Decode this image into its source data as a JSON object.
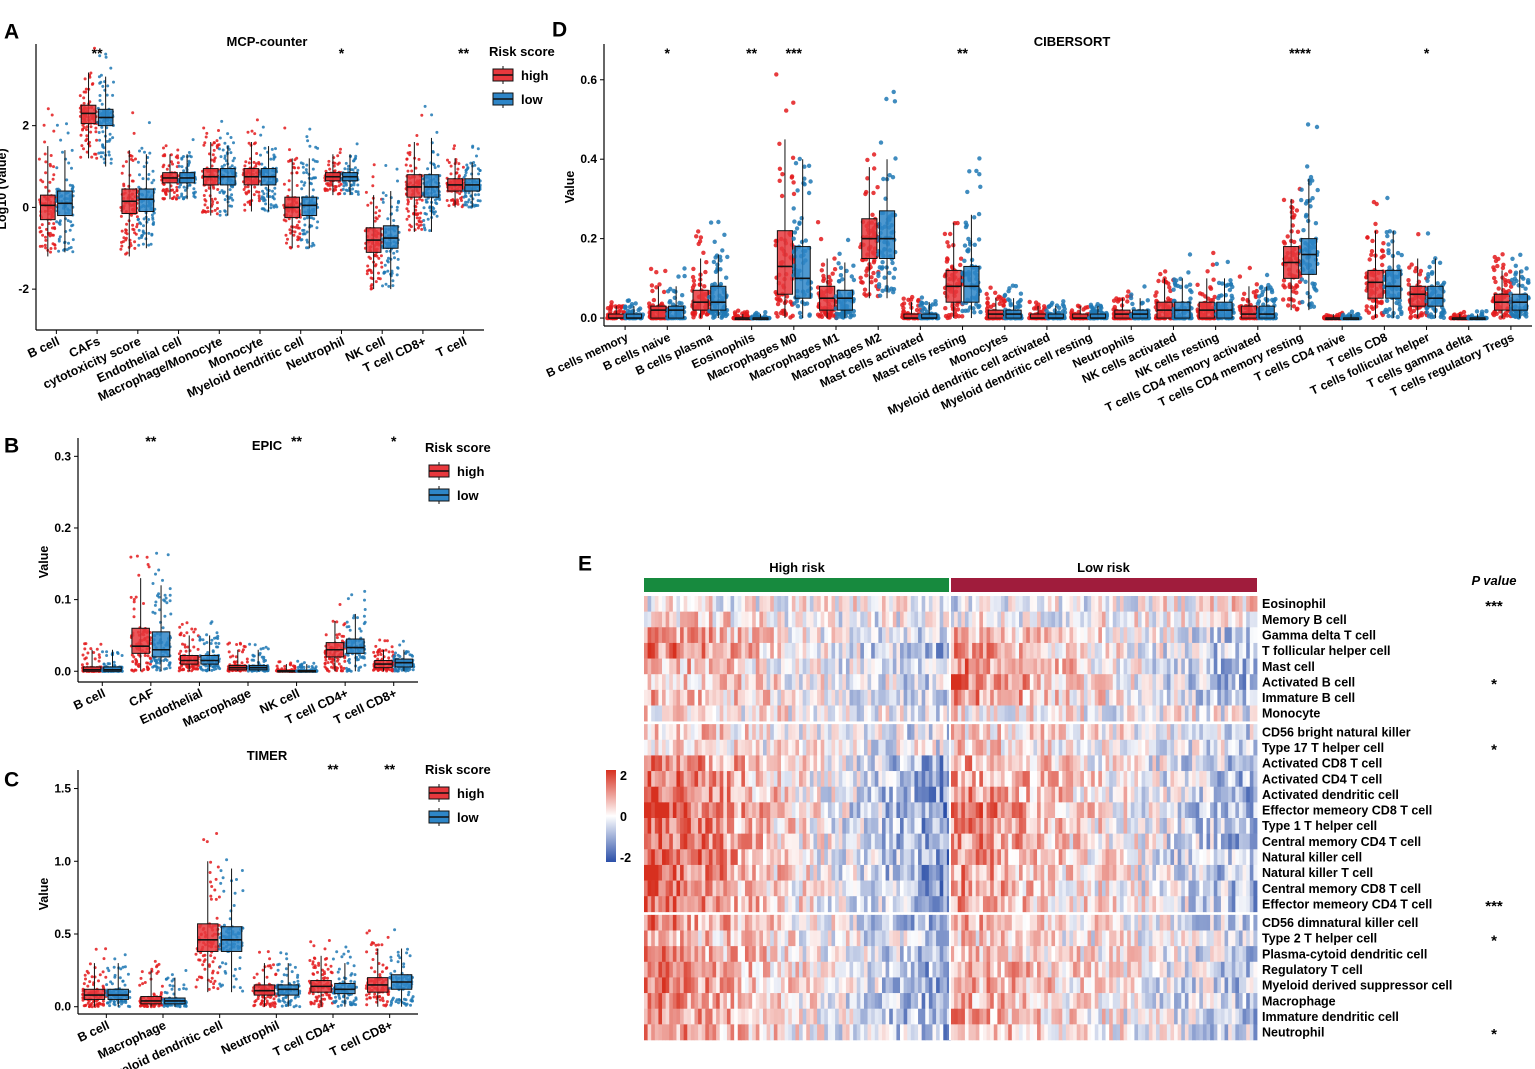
{
  "colors": {
    "high": "#e31a1c",
    "low": "#1f78b4",
    "high_fill": "#e8383d",
    "low_fill": "#2e86c8",
    "high_bar": "#178a3e",
    "low_bar": "#a01c3c",
    "heat_pos": "#d7301f",
    "heat_mid": "#ffffff",
    "heat_neg": "#2b4fa8"
  },
  "legend": {
    "title": "Risk score",
    "high": "high",
    "low": "low"
  },
  "chart_data": [
    {
      "id": "A",
      "panel_label": "A",
      "type": "box",
      "title": "MCP-counter",
      "ylabel": "Log10 (Value)",
      "ylim": [
        -3,
        3.9
      ],
      "yticks": [
        -2,
        0,
        2
      ],
      "categories": [
        "B cell",
        "CAFs",
        "cytotoxicity score",
        "Endothelial cell",
        "Macrophage/Monocyte",
        "Monocyte",
        "Myeloid dendritic cell",
        "Neutrophil",
        "NK cell",
        "T cell CD8+",
        "T cell"
      ],
      "significance": [
        "",
        "**",
        "",
        "",
        "",
        "",
        "",
        "*",
        "",
        "",
        "**"
      ],
      "series": [
        {
          "name": "high",
          "q1": [
            -0.3,
            2.05,
            -0.15,
            0.6,
            0.55,
            0.55,
            -0.25,
            0.65,
            -1.1,
            0.25,
            0.4
          ],
          "median": [
            0.05,
            2.3,
            0.15,
            0.72,
            0.75,
            0.75,
            0.0,
            0.75,
            -0.8,
            0.5,
            0.55
          ],
          "q3": [
            0.3,
            2.5,
            0.45,
            0.85,
            0.95,
            0.95,
            0.25,
            0.85,
            -0.5,
            0.8,
            0.7
          ],
          "wlo": [
            -1.2,
            1.2,
            -1.2,
            0.2,
            -0.2,
            -0.1,
            -1.0,
            0.3,
            -2.0,
            -0.6,
            0.0
          ],
          "whi": [
            1.5,
            3.3,
            1.4,
            1.3,
            1.6,
            1.6,
            1.2,
            1.3,
            0.3,
            1.6,
            1.2
          ]
        },
        {
          "name": "low",
          "q1": [
            -0.2,
            2.0,
            -0.1,
            0.6,
            0.55,
            0.55,
            -0.2,
            0.65,
            -1.0,
            0.25,
            0.4
          ],
          "median": [
            0.1,
            2.2,
            0.2,
            0.72,
            0.75,
            0.75,
            0.05,
            0.75,
            -0.75,
            0.5,
            0.55
          ],
          "q3": [
            0.4,
            2.4,
            0.45,
            0.85,
            0.95,
            0.95,
            0.25,
            0.85,
            -0.45,
            0.8,
            0.7
          ],
          "wlo": [
            -1.1,
            1.0,
            -1.0,
            0.2,
            -0.2,
            -0.1,
            -1.0,
            0.3,
            -2.0,
            -0.6,
            0.0
          ],
          "whi": [
            1.4,
            3.2,
            1.3,
            1.3,
            1.5,
            1.5,
            1.2,
            1.3,
            0.4,
            1.7,
            1.1
          ]
        }
      ]
    },
    {
      "id": "B",
      "panel_label": "B",
      "type": "box",
      "title": "EPIC",
      "ylabel": "Value",
      "ylim": [
        -0.015,
        0.32
      ],
      "yticks": [
        0.0,
        0.1,
        0.2,
        0.3
      ],
      "categories": [
        "B cell",
        "CAF",
        "Endothelial",
        "Macrophage",
        "NK cell",
        "T cell CD4+",
        "T cell CD8+"
      ],
      "significance": [
        "",
        "**",
        "",
        "",
        "**",
        "",
        "*"
      ],
      "series": [
        {
          "name": "high",
          "q1": [
            0.0,
            0.025,
            0.01,
            0.002,
            0.0,
            0.02,
            0.005
          ],
          "median": [
            0.002,
            0.035,
            0.015,
            0.005,
            0.0,
            0.03,
            0.01
          ],
          "q3": [
            0.006,
            0.06,
            0.022,
            0.008,
            0.001,
            0.04,
            0.015
          ],
          "wlo": [
            0.0,
            0.0,
            0.0,
            0.0,
            0.0,
            0.0,
            0.0
          ],
          "whi": [
            0.03,
            0.13,
            0.05,
            0.03,
            0.01,
            0.07,
            0.03
          ]
        },
        {
          "name": "low",
          "q1": [
            0.0,
            0.02,
            0.01,
            0.002,
            0.0,
            0.025,
            0.006
          ],
          "median": [
            0.002,
            0.03,
            0.015,
            0.005,
            0.0,
            0.033,
            0.012
          ],
          "q3": [
            0.006,
            0.055,
            0.022,
            0.008,
            0.001,
            0.045,
            0.017
          ],
          "wlo": [
            0.0,
            0.0,
            0.0,
            0.0,
            0.0,
            0.0,
            0.0
          ],
          "whi": [
            0.03,
            0.12,
            0.05,
            0.03,
            0.01,
            0.08,
            0.03
          ]
        }
      ]
    },
    {
      "id": "C",
      "panel_label": "C",
      "type": "box",
      "title": "TIMER",
      "ylabel": "Value",
      "ylim": [
        -0.05,
        1.6
      ],
      "yticks": [
        0.0,
        0.5,
        1.0,
        1.5
      ],
      "categories": [
        "B cell",
        "Macrophage",
        "Myeloid dendritic cell",
        "Neutrophil",
        "T cell CD4+",
        "T cell CD8+"
      ],
      "significance": [
        "",
        "",
        "",
        "",
        "**",
        "**"
      ],
      "series": [
        {
          "name": "high",
          "q1": [
            0.05,
            0.02,
            0.38,
            0.08,
            0.1,
            0.1
          ],
          "median": [
            0.08,
            0.04,
            0.46,
            0.11,
            0.14,
            0.15
          ],
          "q3": [
            0.12,
            0.07,
            0.57,
            0.15,
            0.18,
            0.2
          ],
          "wlo": [
            0.0,
            0.0,
            0.1,
            0.0,
            0.0,
            0.0
          ],
          "whi": [
            0.3,
            0.25,
            1.0,
            0.3,
            0.35,
            0.4
          ]
        },
        {
          "name": "low",
          "q1": [
            0.05,
            0.02,
            0.38,
            0.08,
            0.09,
            0.12
          ],
          "median": [
            0.08,
            0.04,
            0.46,
            0.12,
            0.12,
            0.17
          ],
          "q3": [
            0.12,
            0.06,
            0.55,
            0.15,
            0.16,
            0.22
          ],
          "wlo": [
            0.0,
            0.0,
            0.1,
            0.0,
            0.0,
            0.0
          ],
          "whi": [
            0.3,
            0.2,
            0.95,
            0.3,
            0.3,
            0.4
          ]
        }
      ]
    },
    {
      "id": "D",
      "panel_label": "D",
      "type": "box",
      "title": "CIBERSORT",
      "ylabel": "Value",
      "ylim": [
        -0.02,
        0.68
      ],
      "yticks": [
        0.0,
        0.2,
        0.4,
        0.6
      ],
      "categories": [
        "B cells memory",
        "B cells naive",
        "B cells plasma",
        "Eosinophils",
        "Macrophages M0",
        "Macrophages M1",
        "Macrophages M2",
        "Mast cells activated",
        "Mast cells resting",
        "Monocytes",
        "Myeloid dendritic cell activated",
        "Myeloid dendritic cell resting",
        "Neutrophils",
        "NK cells activated",
        "NK cells resting",
        "T cells CD4 memory activated",
        "T cells CD4 memory resting",
        "T cells CD4 naive",
        "T cells CD8",
        "T cells follicular helper",
        "T cells gamma delta",
        "T cells regulatory Tregs"
      ],
      "significance": [
        "",
        "*",
        "",
        "**",
        "***",
        "",
        "",
        "",
        "**",
        "",
        "",
        "",
        "",
        "",
        "",
        "",
        "****",
        "",
        "",
        "*",
        "",
        ""
      ],
      "series": [
        {
          "name": "high",
          "q1": [
            0.0,
            0.0,
            0.02,
            0.0,
            0.06,
            0.02,
            0.15,
            0.0,
            0.04,
            0.0,
            0.0,
            0.0,
            0.0,
            0.0,
            0.0,
            0.0,
            0.1,
            0.0,
            0.05,
            0.03,
            0.0,
            0.02
          ],
          "median": [
            0.0,
            0.02,
            0.04,
            0.0,
            0.13,
            0.05,
            0.2,
            0.0,
            0.08,
            0.01,
            0.0,
            0.0,
            0.01,
            0.02,
            0.02,
            0.01,
            0.14,
            0.0,
            0.09,
            0.06,
            0.0,
            0.04
          ],
          "q3": [
            0.01,
            0.03,
            0.07,
            0.0,
            0.22,
            0.08,
            0.25,
            0.01,
            0.12,
            0.02,
            0.01,
            0.01,
            0.02,
            0.04,
            0.04,
            0.03,
            0.18,
            0.0,
            0.12,
            0.08,
            0.0,
            0.06
          ],
          "wlo": [
            0.0,
            0.0,
            0.0,
            0.0,
            0.0,
            0.0,
            0.05,
            0.0,
            0.0,
            0.0,
            0.0,
            0.0,
            0.0,
            0.0,
            0.0,
            0.0,
            0.02,
            0.0,
            0.0,
            0.0,
            0.0,
            0.0
          ],
          "whi": [
            0.03,
            0.08,
            0.15,
            0.01,
            0.45,
            0.15,
            0.38,
            0.04,
            0.24,
            0.05,
            0.03,
            0.03,
            0.05,
            0.1,
            0.1,
            0.08,
            0.3,
            0.01,
            0.22,
            0.15,
            0.01,
            0.12
          ]
        },
        {
          "name": "low",
          "q1": [
            0.0,
            0.0,
            0.02,
            0.0,
            0.05,
            0.02,
            0.15,
            0.0,
            0.04,
            0.0,
            0.0,
            0.0,
            0.0,
            0.0,
            0.0,
            0.0,
            0.11,
            0.0,
            0.05,
            0.03,
            0.0,
            0.02
          ],
          "median": [
            0.0,
            0.02,
            0.04,
            0.0,
            0.1,
            0.05,
            0.2,
            0.0,
            0.08,
            0.01,
            0.0,
            0.0,
            0.01,
            0.02,
            0.02,
            0.01,
            0.16,
            0.0,
            0.08,
            0.05,
            0.0,
            0.04
          ],
          "q3": [
            0.01,
            0.03,
            0.08,
            0.0,
            0.18,
            0.07,
            0.27,
            0.01,
            0.13,
            0.02,
            0.01,
            0.01,
            0.02,
            0.04,
            0.04,
            0.03,
            0.2,
            0.0,
            0.12,
            0.08,
            0.0,
            0.06
          ],
          "wlo": [
            0.0,
            0.0,
            0.0,
            0.0,
            0.0,
            0.0,
            0.05,
            0.0,
            0.0,
            0.0,
            0.0,
            0.0,
            0.0,
            0.0,
            0.0,
            0.0,
            0.02,
            0.0,
            0.0,
            0.0,
            0.0,
            0.0
          ],
          "whi": [
            0.03,
            0.08,
            0.16,
            0.01,
            0.4,
            0.14,
            0.4,
            0.04,
            0.26,
            0.05,
            0.03,
            0.03,
            0.05,
            0.1,
            0.1,
            0.08,
            0.35,
            0.01,
            0.22,
            0.15,
            0.01,
            0.12
          ]
        }
      ]
    },
    {
      "id": "E",
      "panel_label": "E",
      "type": "heatmap",
      "groups": [
        "High risk",
        "Low risk"
      ],
      "pvalue_header": "P value",
      "scale_ticks": [
        2,
        0,
        -2
      ],
      "row_blocks": [
        8,
        12,
        8
      ],
      "rows": [
        "Eosinophil",
        "Memory B cell",
        "Gamma delta T cell",
        "T follicular helper cell",
        "Mast cell",
        "Activated B cell",
        "Immature B cell",
        "Monocyte",
        "CD56 bright natural killer",
        "Type 17 T helper cell",
        "Activated CD8 T cell",
        "Activated CD4 T cell",
        "Activated dendritic cell",
        "Effector memeory CD8 T cell",
        "Type 1 T helper cell",
        "Central memory CD4 T cell",
        "Natural killer cell",
        "Natural killer T cell",
        "Central memory CD8 T cell",
        "Effector memeory CD4 T cell",
        "CD56 dimnatural killer cell",
        "Type 2 T helper cell",
        "Plasma-cytoid dendritic cell",
        "Regulatory T cell",
        "Myeloid derived suppressor cell",
        "Macrophage",
        "Immature dendritic cell",
        "Neutrophil"
      ],
      "pvalues": [
        "***",
        "",
        "",
        "",
        "",
        "*",
        "",
        "",
        "",
        "*",
        "",
        "",
        "",
        "",
        "",
        "",
        "",
        "",
        "",
        "***",
        "",
        "*",
        "",
        "",
        "",
        "",
        "",
        "*"
      ],
      "row_trend_high": [
        0.0,
        0.3,
        0.7,
        0.9,
        0.5,
        0.4,
        0.6,
        0.2,
        0.4,
        0.2,
        1.0,
        1.0,
        1.1,
        1.2,
        1.1,
        1.1,
        1.1,
        1.1,
        1.0,
        1.0,
        0.9,
        0.5,
        0.8,
        0.9,
        0.9,
        0.9,
        0.9,
        0.8
      ],
      "row_trend_low": [
        -0.3,
        0.1,
        0.6,
        0.7,
        0.8,
        0.9,
        0.8,
        0.1,
        0.3,
        0.3,
        0.6,
        0.7,
        0.8,
        0.9,
        0.8,
        0.8,
        0.8,
        0.7,
        0.7,
        0.7,
        0.5,
        0.3,
        0.5,
        0.6,
        0.6,
        0.6,
        0.6,
        0.5
      ]
    }
  ]
}
